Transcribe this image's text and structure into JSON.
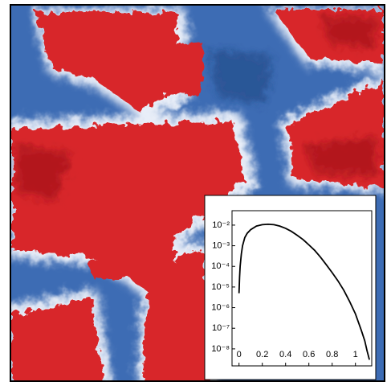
{
  "chart_data": {
    "type": "line",
    "x": [
      0,
      0.005,
      0.01,
      0.02,
      0.03,
      0.05,
      0.07,
      0.1,
      0.15,
      0.2,
      0.25,
      0.3,
      0.35,
      0.4,
      0.45,
      0.5,
      0.55,
      0.6,
      0.65,
      0.7,
      0.75,
      0.8,
      0.85,
      0.9,
      0.95,
      1.0,
      1.05,
      1.08,
      1.1,
      1.12
    ],
    "y": [
      5e-06,
      3e-05,
      0.0001,
      0.0004,
      0.001,
      0.0025,
      0.004,
      0.006,
      0.009,
      0.0105,
      0.011,
      0.0105,
      0.009,
      0.007,
      0.005,
      0.0032,
      0.002,
      0.0011,
      0.0006,
      0.00028,
      0.00012,
      5e-05,
      2e-05,
      7e-06,
      2e-06,
      5e-07,
      8e-08,
      2.5e-08,
      8e-09,
      3e-09
    ],
    "color": "#000000",
    "xlim": [
      -0.06,
      1.14
    ],
    "xticks": [
      0,
      0.2,
      0.4,
      0.6,
      0.8,
      1
    ],
    "ylim": [
      1.5e-09,
      0.05
    ],
    "log_y": true,
    "yticks": [
      {
        "value": 0.01,
        "label": "10⁻²"
      },
      {
        "value": 0.001,
        "label": "10⁻³"
      },
      {
        "value": 0.0001,
        "label": "10⁻⁴"
      },
      {
        "value": 1e-05,
        "label": "10⁻⁵"
      },
      {
        "value": 1e-06,
        "label": "10⁻⁶"
      },
      {
        "value": 1e-07,
        "label": "10⁻⁷"
      },
      {
        "value": 1e-08,
        "label": "10⁻⁸"
      }
    ]
  }
}
